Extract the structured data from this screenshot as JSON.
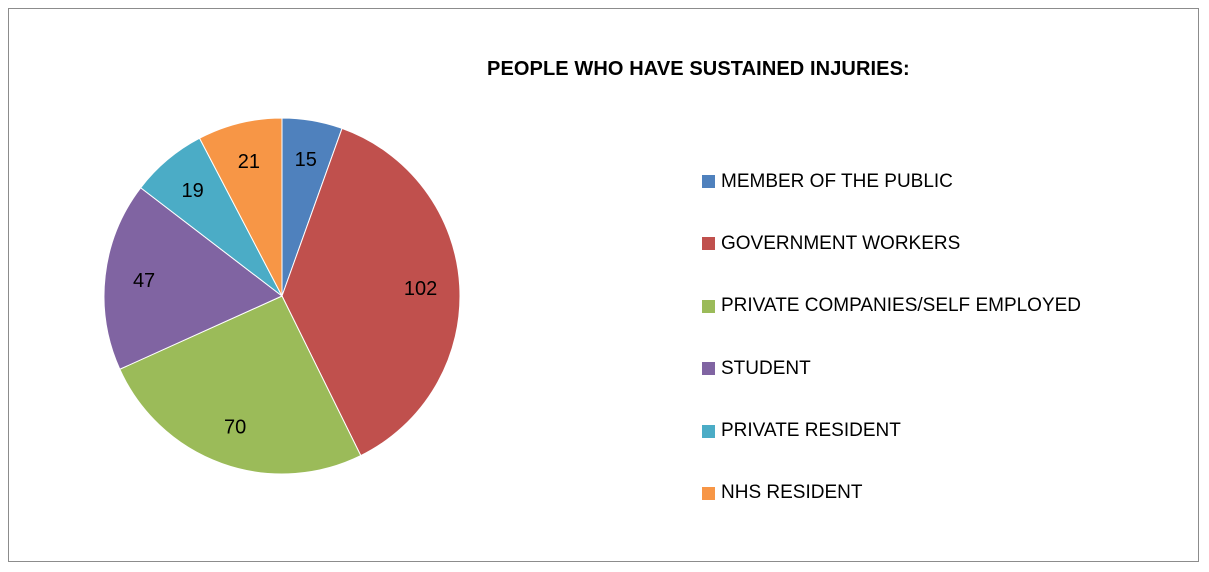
{
  "chart_data": {
    "type": "pie",
    "title": "PEOPLE WHO HAVE SUSTAINED INJURIES:",
    "categories": [
      "MEMBER OF THE PUBLIC",
      "GOVERNMENT WORKERS",
      "PRIVATE COMPANIES/SELF EMPLOYED",
      "STUDENT",
      "PRIVATE RESIDENT",
      "NHS RESIDENT"
    ],
    "values": [
      15,
      102,
      70,
      47,
      19,
      21
    ],
    "colors": [
      "#4F81BD",
      "#C0504D",
      "#9BBB59",
      "#8064A2",
      "#4BACC6",
      "#F79646"
    ],
    "legend_position": "right",
    "data_labels": true
  }
}
